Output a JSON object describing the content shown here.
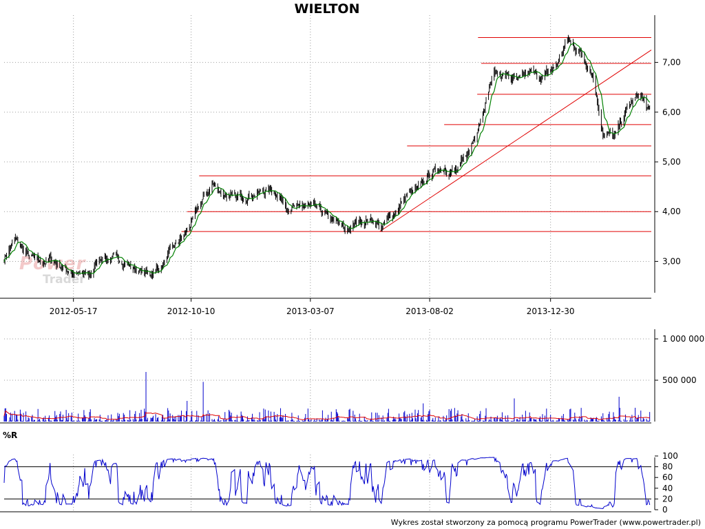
{
  "title": "WIELTON",
  "footer": "Wykres został stworzony za pomocą programu PowerTrader (www.powertrader.pl)",
  "watermark": {
    "line1": "Power",
    "line2": "Trader"
  },
  "indicator_label": "%R",
  "colors": {
    "candles": "#000000",
    "ma": "#008000",
    "levels": "#e00000",
    "trend": "#e00000",
    "volume": "#0000cc",
    "volume_ma": "#e00000",
    "wr": "#0000cc",
    "grid": "#999999"
  },
  "chart_data": [
    {
      "type": "candlestick",
      "title": "WIELTON",
      "x_ticks": [
        "2012-05-17",
        "2012-10-10",
        "2013-03-07",
        "2013-08-02",
        "2013-12-30"
      ],
      "x_range": [
        "2012-02-21",
        "2014-05-04"
      ],
      "ylim": [
        2.3,
        7.95
      ],
      "y_ticks": [
        "3,00",
        "4,00",
        "5,00",
        "6,00",
        "7,00"
      ],
      "grid": true,
      "close_path": [
        [
          "2012-02-21",
          3.05
        ],
        [
          "2012-03-05",
          3.45
        ],
        [
          "2012-03-20",
          3.15
        ],
        [
          "2012-04-05",
          2.95
        ],
        [
          "2012-04-20",
          3.05
        ],
        [
          "2012-05-05",
          2.85
        ],
        [
          "2012-05-20",
          2.75
        ],
        [
          "2012-06-05",
          2.7
        ],
        [
          "2012-06-20",
          3.1
        ],
        [
          "2012-07-05",
          3.05
        ],
        [
          "2012-07-20",
          3.0
        ],
        [
          "2012-08-05",
          2.8
        ],
        [
          "2012-08-20",
          2.75
        ],
        [
          "2012-09-05",
          2.95
        ],
        [
          "2012-09-20",
          3.3
        ],
        [
          "2012-10-05",
          3.6
        ],
        [
          "2012-10-20",
          4.1
        ],
        [
          "2012-11-05",
          4.55
        ],
        [
          "2012-11-20",
          4.35
        ],
        [
          "2012-12-05",
          4.25
        ],
        [
          "2012-12-20",
          4.35
        ],
        [
          "2013-01-05",
          4.4
        ],
        [
          "2013-01-20",
          4.45
        ],
        [
          "2013-02-05",
          4.15
        ],
        [
          "2013-02-20",
          4.05
        ],
        [
          "2013-03-05",
          4.1
        ],
        [
          "2013-03-20",
          4.0
        ],
        [
          "2013-04-05",
          3.8
        ],
        [
          "2013-04-20",
          3.6
        ],
        [
          "2013-05-05",
          3.8
        ],
        [
          "2013-05-20",
          3.85
        ],
        [
          "2013-06-05",
          3.7
        ],
        [
          "2013-06-20",
          4.0
        ],
        [
          "2013-07-05",
          4.35
        ],
        [
          "2013-07-20",
          4.45
        ],
        [
          "2013-08-05",
          4.8
        ],
        [
          "2013-08-20",
          4.9
        ],
        [
          "2013-09-05",
          4.8
        ],
        [
          "2013-09-20",
          5.2
        ],
        [
          "2013-10-05",
          5.95
        ],
        [
          "2013-10-20",
          6.8
        ],
        [
          "2013-11-05",
          6.75
        ],
        [
          "2013-11-20",
          6.6
        ],
        [
          "2013-12-05",
          6.8
        ],
        [
          "2013-12-20",
          6.7
        ],
        [
          "2014-01-05",
          6.9
        ],
        [
          "2014-01-20",
          7.45
        ],
        [
          "2014-02-05",
          7.2
        ],
        [
          "2014-02-20",
          6.8
        ],
        [
          "2014-03-05",
          5.6
        ],
        [
          "2014-03-20",
          5.5
        ],
        [
          "2014-04-05",
          6.1
        ],
        [
          "2014-04-20",
          6.35
        ],
        [
          "2014-05-04",
          5.95
        ]
      ],
      "horizontal_levels": [
        {
          "y": 3.6,
          "from": "2012-09-28",
          "to": "2014-05-04"
        },
        {
          "y": 4.0,
          "from": "2012-10-05",
          "to": "2014-05-04"
        },
        {
          "y": 4.72,
          "from": "2012-10-20",
          "to": "2014-05-04"
        },
        {
          "y": 5.32,
          "from": "2013-07-05",
          "to": "2014-05-04"
        },
        {
          "y": 5.75,
          "from": "2013-08-20",
          "to": "2014-05-04"
        },
        {
          "y": 6.36,
          "from": "2013-09-30",
          "to": "2014-05-04"
        },
        {
          "y": 6.98,
          "from": "2013-10-05",
          "to": "2014-05-04"
        },
        {
          "y": 7.5,
          "from": "2013-10-01",
          "to": "2014-05-04"
        }
      ],
      "trend_line": {
        "from": [
          "2013-06-01",
          3.6
        ],
        "to": [
          "2014-05-04",
          7.25
        ]
      }
    },
    {
      "type": "bar",
      "title": "Volume",
      "y_ticks": [
        "500 000",
        "1 000 000"
      ],
      "ylim": [
        0,
        1100000
      ],
      "spikes": [
        [
          "2012-08-15",
          600000
        ],
        [
          "2012-10-05",
          250000
        ],
        [
          "2012-10-25",
          480000
        ],
        [
          "2013-07-20",
          700000
        ],
        [
          "2013-07-25",
          220000
        ],
        [
          "2013-11-10",
          660000
        ],
        [
          "2013-11-15",
          280000
        ],
        [
          "2013-12-08",
          1060000
        ],
        [
          "2014-03-25",
          300000
        ]
      ]
    },
    {
      "type": "line",
      "title": "%R",
      "ylim": [
        0,
        100
      ],
      "y_ticks": [
        "0",
        "20",
        "40",
        "60",
        "80",
        "100"
      ],
      "reference_lines": [
        20,
        80
      ]
    }
  ]
}
